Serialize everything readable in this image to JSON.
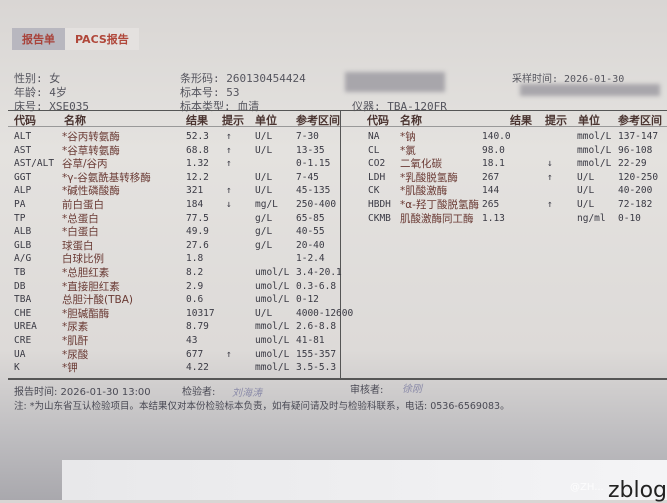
{
  "tabs": [
    {
      "label": "报告单",
      "active": true
    },
    {
      "label": "PACS报告",
      "active": false
    }
  ],
  "patient": {
    "gender": "性别: 女",
    "age": "年龄: 4岁",
    "bed": "床号: XSE035",
    "barcode": "条形码: 260130454424",
    "sample_no": "标本号: 53",
    "sample_type": "标本类型: 血清",
    "instrument": "仪器: TBA-120FR",
    "sample_time": "采样时间: 2026-01-30"
  },
  "columns": {
    "code": "代码",
    "name": "名称",
    "result": "结果",
    "flag": "提示",
    "unit": "单位",
    "ref": "参考区间"
  },
  "left_rows": [
    [
      "ALT",
      "*谷丙转氨酶",
      "52.3",
      "↑",
      "U/L",
      "7-30"
    ],
    [
      "AST",
      "*谷草转氨酶",
      "68.8",
      "↑",
      "U/L",
      "13-35"
    ],
    [
      "AST/ALT",
      "谷草/谷丙",
      "1.32",
      "↑",
      "",
      "0-1.15"
    ],
    [
      "GGT",
      "*γ-谷氨酰基转移酶",
      "12.2",
      "",
      "U/L",
      "7-45"
    ],
    [
      "ALP",
      "*碱性磷酸酶",
      "321",
      "↑",
      "U/L",
      "45-135"
    ],
    [
      "PA",
      "前白蛋白",
      "184",
      "↓",
      "mg/L",
      "250-400"
    ],
    [
      "TP",
      "*总蛋白",
      "77.5",
      "",
      "g/L",
      "65-85"
    ],
    [
      "ALB",
      "*白蛋白",
      "49.9",
      "",
      "g/L",
      "40-55"
    ],
    [
      "GLB",
      "球蛋白",
      "27.6",
      "",
      "g/L",
      "20-40"
    ],
    [
      "A/G",
      "白球比例",
      "1.8",
      "",
      "",
      "1-2.4"
    ],
    [
      "TB",
      "*总胆红素",
      "8.2",
      "",
      "umol/L",
      "3.4-20.1"
    ],
    [
      "DB",
      "*直接胆红素",
      "2.9",
      "",
      "umol/L",
      "0.3-6.8"
    ],
    [
      "TBA",
      "总胆汁酸(TBA)",
      "0.6",
      "",
      "umol/L",
      "0-12"
    ],
    [
      "CHE",
      "*胆碱酯酶",
      "10317",
      "",
      "U/L",
      "4000-12600"
    ],
    [
      "UREA",
      "*尿素",
      "8.79",
      "",
      "mmol/L",
      "2.6-8.8"
    ],
    [
      "CRE",
      "*肌酐",
      "43",
      "",
      "umol/L",
      "41-81"
    ],
    [
      "UA",
      "*尿酸",
      "677",
      "↑",
      "umol/L",
      "155-357"
    ],
    [
      "K",
      "*钾",
      "4.22",
      "",
      "mmol/L",
      "3.5-5.3"
    ]
  ],
  "right_rows": [
    [
      "NA",
      "*钠",
      "140.0",
      "",
      "mmol/L",
      "137-147"
    ],
    [
      "CL",
      "*氯",
      "98.0",
      "",
      "mmol/L",
      "96-108"
    ],
    [
      "CO2",
      "二氧化碳",
      "18.1",
      "↓",
      "mmol/L",
      "22-29"
    ],
    [
      "LDH",
      "*乳酸脱氢酶",
      "267",
      "↑",
      "U/L",
      "120-250"
    ],
    [
      "CK",
      "*肌酸激酶",
      "144",
      "",
      "U/L",
      "40-200"
    ],
    [
      "HBDH",
      "*α-羟丁酸脱氢酶",
      "265",
      "↑",
      "U/L",
      "72-182"
    ],
    [
      "CKMB",
      "肌酸激酶同工酶",
      "1.13",
      "",
      "ng/ml",
      "0-10"
    ]
  ],
  "footer": {
    "report_time": "报告时间: 2026-01-30 13:00",
    "tester_label": "检验者:",
    "tester_sig": "刘海涛",
    "reviewer_label": "审核者:",
    "reviewer_sig": "徐刚",
    "note": "注: *为山东省互认检验项目。本结果仅对本份检验标本负责，如有疑问请及时与检验科联系，电话: 0536-6569083。"
  },
  "watermark": {
    "text": "zblog",
    "handle": "@ZH..."
  }
}
